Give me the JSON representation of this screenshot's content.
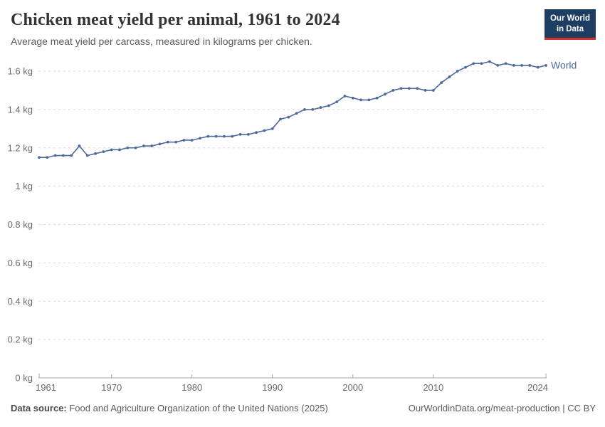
{
  "header": {
    "title": "Chicken meat yield per animal, 1961 to 2024",
    "subtitle": "Average meat yield per carcass, measured in kilograms per chicken.",
    "logo": {
      "line1": "Our World",
      "line2": "in Data",
      "bg_color": "#1d3d63",
      "accent_color": "#d0342b"
    }
  },
  "chart_data": {
    "type": "line",
    "title": "Chicken meat yield per animal, 1961 to 2024",
    "subtitle": "Average meat yield per carcass, measured in kilograms per chicken.",
    "xlabel": "",
    "ylabel": "",
    "ylim": [
      0,
      1.6
    ],
    "grid": "horizontal-dashed",
    "legend_position": "end-of-line",
    "x": [
      1961,
      1962,
      1963,
      1964,
      1965,
      1966,
      1967,
      1968,
      1969,
      1970,
      1971,
      1972,
      1973,
      1974,
      1975,
      1976,
      1977,
      1978,
      1979,
      1980,
      1981,
      1982,
      1983,
      1984,
      1985,
      1986,
      1987,
      1988,
      1989,
      1990,
      1991,
      1992,
      1993,
      1994,
      1995,
      1996,
      1997,
      1998,
      1999,
      2000,
      2001,
      2002,
      2003,
      2004,
      2005,
      2006,
      2007,
      2008,
      2009,
      2010,
      2011,
      2012,
      2013,
      2014,
      2015,
      2016,
      2017,
      2018,
      2019,
      2020,
      2021,
      2022,
      2023,
      2024
    ],
    "series": [
      {
        "name": "World",
        "color": "#4c6a9c",
        "values": [
          1.15,
          1.15,
          1.16,
          1.16,
          1.16,
          1.21,
          1.16,
          1.17,
          1.18,
          1.19,
          1.19,
          1.2,
          1.2,
          1.21,
          1.21,
          1.22,
          1.23,
          1.23,
          1.24,
          1.24,
          1.25,
          1.26,
          1.26,
          1.26,
          1.26,
          1.27,
          1.27,
          1.28,
          1.29,
          1.3,
          1.35,
          1.36,
          1.38,
          1.4,
          1.4,
          1.41,
          1.42,
          1.44,
          1.47,
          1.46,
          1.45,
          1.45,
          1.46,
          1.48,
          1.5,
          1.51,
          1.51,
          1.51,
          1.5,
          1.5,
          1.54,
          1.57,
          1.6,
          1.62,
          1.64,
          1.64,
          1.65,
          1.63,
          1.64,
          1.63,
          1.63,
          1.63,
          1.62,
          1.63
        ]
      }
    ],
    "y_ticks": [
      {
        "value": 0,
        "label": "0 kg"
      },
      {
        "value": 0.2,
        "label": "0.2 kg"
      },
      {
        "value": 0.4,
        "label": "0.4 kg"
      },
      {
        "value": 0.6,
        "label": "0.6 kg"
      },
      {
        "value": 0.8,
        "label": "0.8 kg"
      },
      {
        "value": 1,
        "label": "1 kg"
      },
      {
        "value": 1.2,
        "label": "1.2 kg"
      },
      {
        "value": 1.4,
        "label": "1.4 kg"
      },
      {
        "value": 1.6,
        "label": "1.6 kg"
      }
    ],
    "x_ticks": [
      {
        "value": 1961,
        "label": "1961"
      },
      {
        "value": 1970,
        "label": "1970"
      },
      {
        "value": 1980,
        "label": "1980"
      },
      {
        "value": 1990,
        "label": "1990"
      },
      {
        "value": 2000,
        "label": "2000"
      },
      {
        "value": 2010,
        "label": "2010"
      },
      {
        "value": 2024,
        "label": "2024"
      }
    ]
  },
  "footer": {
    "data_source_label": "Data source:",
    "data_source_value": " Food and Agriculture Organization of the United Nations (2025)",
    "attribution_url": "OurWorldinData.org/meat-production",
    "attribution_license": " | CC BY"
  }
}
